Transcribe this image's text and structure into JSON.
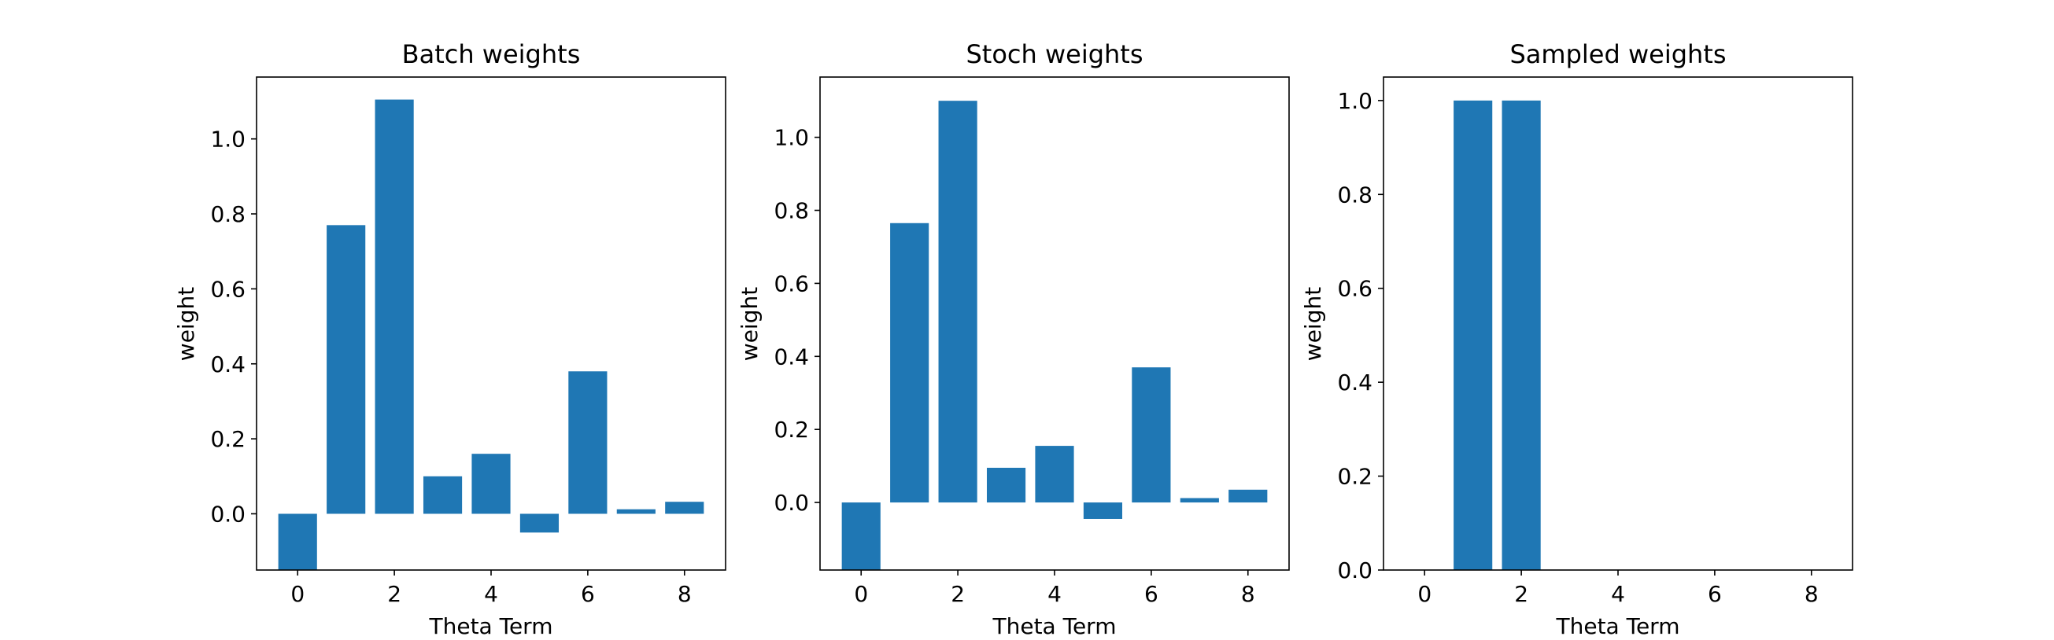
{
  "chart_data": [
    {
      "type": "bar",
      "title": "Batch weights",
      "xlabel": "Theta Term",
      "ylabel": "weight",
      "categories": [
        0,
        1,
        2,
        3,
        4,
        5,
        6,
        7,
        8
      ],
      "values": [
        -0.15,
        0.77,
        1.105,
        0.1,
        0.16,
        -0.05,
        0.38,
        0.012,
        0.032
      ],
      "xlim": [
        -0.85,
        8.85
      ],
      "ylim": [
        -0.15,
        1.165
      ],
      "xticks": [
        0,
        2,
        4,
        6,
        8
      ],
      "yticks": [
        0.0,
        0.2,
        0.4,
        0.6,
        0.8,
        1.0
      ],
      "ytick_decimals": 1,
      "grid": false,
      "bar_color": "#1f77b4"
    },
    {
      "type": "bar",
      "title": "Stoch weights",
      "xlabel": "Theta Term",
      "ylabel": "weight",
      "categories": [
        0,
        1,
        2,
        3,
        4,
        5,
        6,
        7,
        8
      ],
      "values": [
        -0.185,
        0.765,
        1.1,
        0.095,
        0.155,
        -0.045,
        0.37,
        0.012,
        0.035
      ],
      "xlim": [
        -0.85,
        8.85
      ],
      "ylim": [
        -0.185,
        1.165
      ],
      "xticks": [
        0,
        2,
        4,
        6,
        8
      ],
      "yticks": [
        0.0,
        0.2,
        0.4,
        0.6,
        0.8,
        1.0
      ],
      "ytick_decimals": 1,
      "grid": false,
      "bar_color": "#1f77b4"
    },
    {
      "type": "bar",
      "title": "Sampled weights",
      "xlabel": "Theta Term",
      "ylabel": "weight",
      "categories": [
        0,
        1,
        2,
        3,
        4,
        5,
        6,
        7,
        8
      ],
      "values": [
        0,
        1,
        1,
        0,
        0,
        0,
        0,
        0,
        0
      ],
      "xlim": [
        -0.85,
        8.85
      ],
      "ylim": [
        0,
        1.05
      ],
      "xticks": [
        0,
        2,
        4,
        6,
        8
      ],
      "yticks": [
        0.0,
        0.2,
        0.4,
        0.6,
        0.8,
        1.0
      ],
      "ytick_decimals": 1,
      "grid": false,
      "bar_color": "#1f77b4"
    }
  ]
}
